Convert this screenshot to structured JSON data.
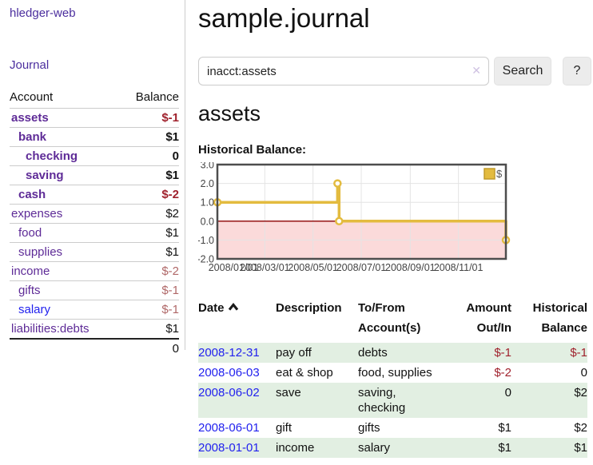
{
  "app": {
    "brand": "hledger-web",
    "nav_journal": "Journal"
  },
  "colors": {
    "nav_purple": "#4b2e9e",
    "account_purple": "#5e2b97",
    "link_blue": "#2222ee",
    "negative_strong": "#a0222d",
    "negative_muted": "#b06868",
    "row_green": "#e2efe2",
    "chart_gold": "#e3bb3f",
    "chart_gold_dark": "#c19b2b",
    "negative_region": "#fbdada",
    "zero_line": "#8b0000"
  },
  "sidebar": {
    "table_headers": {
      "account": "Account",
      "balance": "Balance"
    },
    "accounts": [
      {
        "name": "assets",
        "depth": 0,
        "bold": true,
        "balance": "$-1",
        "balance_style": "neg-strong"
      },
      {
        "name": "bank",
        "depth": 1,
        "bold": true,
        "balance": "$1",
        "balance_style": "pos"
      },
      {
        "name": "checking",
        "depth": 2,
        "bold": true,
        "balance": "0",
        "balance_style": "pos"
      },
      {
        "name": "saving",
        "depth": 2,
        "bold": true,
        "balance": "$1",
        "balance_style": "pos"
      },
      {
        "name": "cash",
        "depth": 1,
        "bold": true,
        "balance": "$-2",
        "balance_style": "neg-strong"
      },
      {
        "name": "expenses",
        "depth": 0,
        "bold": false,
        "balance": "$2",
        "balance_style": "pos"
      },
      {
        "name": "food",
        "depth": 1,
        "bold": false,
        "balance": "$1",
        "balance_style": "pos"
      },
      {
        "name": "supplies",
        "depth": 1,
        "bold": false,
        "balance": "$1",
        "balance_style": "pos"
      },
      {
        "name": "income",
        "depth": 0,
        "bold": false,
        "balance": "$-2",
        "balance_style": "neg-muted"
      },
      {
        "name": "gifts",
        "depth": 1,
        "bold": false,
        "balance": "$-1",
        "balance_style": "neg-muted"
      },
      {
        "name": "salary",
        "depth": 1,
        "bold": false,
        "balance": "$-1",
        "balance_style": "neg-muted",
        "link_style": "blue"
      },
      {
        "name": "liabilities:debts",
        "depth": 0,
        "bold": false,
        "balance": "$1",
        "balance_style": "pos"
      }
    ],
    "total": "0"
  },
  "header": {
    "title": "sample.journal"
  },
  "search": {
    "value": "inacct:assets",
    "placeholder": "",
    "clear_icon": "✕",
    "button": "Search",
    "help_button": "?"
  },
  "account_page": {
    "heading": "assets",
    "chart_label": "Historical Balance:"
  },
  "chart_data": {
    "type": "line",
    "step": true,
    "title": "Historical Balance",
    "ylim": [
      -2,
      3
    ],
    "y_ticks": [
      "3.0",
      "2.0",
      "1.0",
      "0.0",
      "-1.0",
      "-2.0"
    ],
    "x_ticks": [
      "2008/01/01",
      "2008/03/01",
      "2008/05/01",
      "2008/07/01",
      "2008/09/01",
      "2008/11/01"
    ],
    "x_range": [
      "2008-01-01",
      "2008-12-31"
    ],
    "grid": true,
    "legend_position": "top-right",
    "series": [
      {
        "name": "$",
        "points": [
          [
            "2008-01-01",
            1
          ],
          [
            "2008-06-01",
            2
          ],
          [
            "2008-06-03",
            0
          ],
          [
            "2008-12-31",
            -1
          ]
        ]
      }
    ]
  },
  "register": {
    "headers": {
      "date": "Date",
      "description": "Description",
      "tofrom": "To/From Account(s)",
      "amount": "Amount Out/In",
      "balance": "Historical Balance"
    },
    "rows": [
      {
        "date": "2008-12-31",
        "description": "pay off",
        "accounts": "debts",
        "amount": "$-1",
        "amount_style": "neg",
        "balance": "$-1",
        "balance_style": "neg"
      },
      {
        "date": "2008-06-03",
        "description": "eat & shop",
        "accounts": "food, supplies",
        "amount": "$-2",
        "amount_style": "neg",
        "balance": "0",
        "balance_style": "pos"
      },
      {
        "date": "2008-06-02",
        "description": "save",
        "accounts": "saving, checking",
        "amount": "0",
        "amount_style": "pos",
        "balance": "$2",
        "balance_style": "pos"
      },
      {
        "date": "2008-06-01",
        "description": "gift",
        "accounts": "gifts",
        "amount": "$1",
        "amount_style": "pos",
        "balance": "$2",
        "balance_style": "pos"
      },
      {
        "date": "2008-01-01",
        "description": "income",
        "accounts": "salary",
        "amount": "$1",
        "amount_style": "pos",
        "balance": "$1",
        "balance_style": "pos"
      }
    ]
  }
}
